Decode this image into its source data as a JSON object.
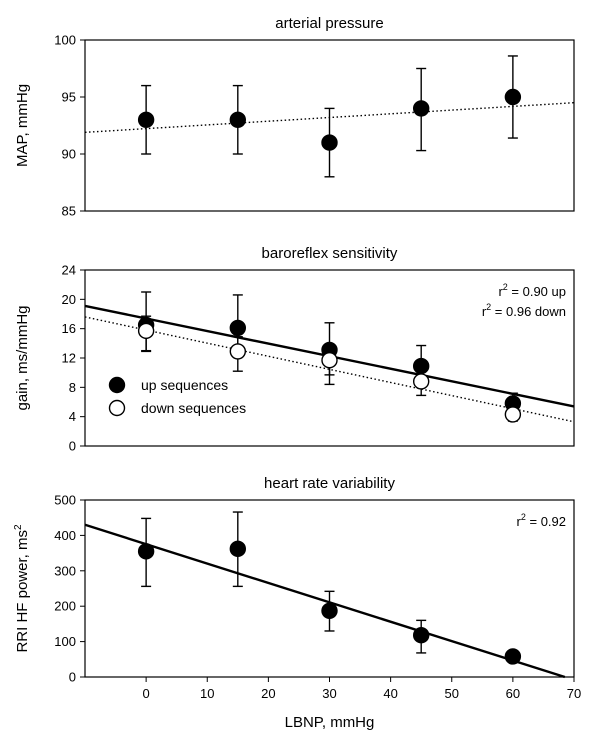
{
  "chart_data": [
    {
      "type": "scatter",
      "title": "arterial pressure",
      "ylabel": "MAP, mmHg",
      "xlabel": "",
      "xlim": [
        -10,
        70
      ],
      "ylim": [
        85,
        100
      ],
      "yticks": [
        85,
        90,
        95,
        100
      ],
      "xticks": [],
      "x": [
        0,
        15,
        30,
        45,
        60
      ],
      "series": [
        {
          "values": [
            93,
            93,
            91,
            94,
            95
          ],
          "err_upper": [
            96,
            96,
            94,
            97.5,
            98.6
          ],
          "err_lower": [
            90,
            90,
            88,
            90.3,
            91.4
          ],
          "marker": "filled"
        }
      ],
      "trendlines": [
        {
          "style": "dotted",
          "from": [
            -10,
            91.9
          ],
          "to": [
            70,
            94.5
          ]
        }
      ],
      "annotations": [],
      "legend": []
    },
    {
      "type": "scatter",
      "title": "baroreflex sensitivity",
      "ylabel": "gain, ms/mmHg",
      "xlabel": "",
      "xlim": [
        -10,
        70
      ],
      "ylim": [
        0,
        24
      ],
      "yticks": [
        0,
        4,
        8,
        12,
        16,
        20,
        24
      ],
      "xticks": [],
      "x": [
        0,
        15,
        30,
        45,
        60
      ],
      "series": [
        {
          "name": "up sequences",
          "values": [
            16.5,
            16.1,
            13.1,
            10.9,
            5.8
          ],
          "err_upper": [
            21,
            20.6,
            16.8,
            13.7,
            7.2
          ],
          "err_lower": [
            13,
            12.6,
            9.7,
            8.1,
            4.4
          ],
          "marker": "filled"
        },
        {
          "name": "down sequences",
          "values": [
            15.7,
            12.9,
            11.7,
            8.8,
            4.3
          ],
          "err_upper": [
            17.7,
            14.9,
            13.7,
            10.7,
            5.2
          ],
          "err_lower": [
            12.9,
            10.2,
            8.4,
            6.9,
            3.4
          ],
          "marker": "open"
        }
      ],
      "trendlines": [
        {
          "style": "solid",
          "from": [
            -10,
            19.1
          ],
          "to": [
            70,
            5.4
          ]
        },
        {
          "style": "dotted",
          "from": [
            -10,
            17.6
          ],
          "to": [
            70,
            3.3
          ]
        }
      ],
      "annotations": [
        {
          "r": "r",
          "sup": "2",
          "text": " = 0.90 up"
        },
        {
          "r": "r",
          "sup": "2",
          "text": " = 0.96 down"
        }
      ],
      "legend": [
        "up sequences",
        "down sequences"
      ],
      "legend_position": "lower-left"
    },
    {
      "type": "scatter",
      "title": "heart rate variability",
      "ylabel": "RRI HF power, ms",
      "ylabel_sup": "2",
      "xlabel": "LBNP, mmHg",
      "xlim": [
        -10,
        70
      ],
      "ylim": [
        0,
        500
      ],
      "yticks": [
        0,
        100,
        200,
        300,
        400,
        500
      ],
      "xticks": [
        0,
        10,
        20,
        30,
        40,
        50,
        60,
        70
      ],
      "x": [
        0,
        15,
        30,
        45,
        60
      ],
      "series": [
        {
          "values": [
            355,
            362,
            187,
            118,
            58
          ],
          "err_upper": [
            448,
            466,
            242,
            160,
            72
          ],
          "err_lower": [
            256,
            256,
            130,
            68,
            46
          ],
          "marker": "filled"
        }
      ],
      "trendlines": [
        {
          "style": "solid",
          "from": [
            -10,
            430
          ],
          "to": [
            68.5,
            0
          ]
        }
      ],
      "annotations": [
        {
          "r": "r",
          "sup": "2",
          "text": " = 0.92"
        }
      ],
      "legend": []
    }
  ]
}
